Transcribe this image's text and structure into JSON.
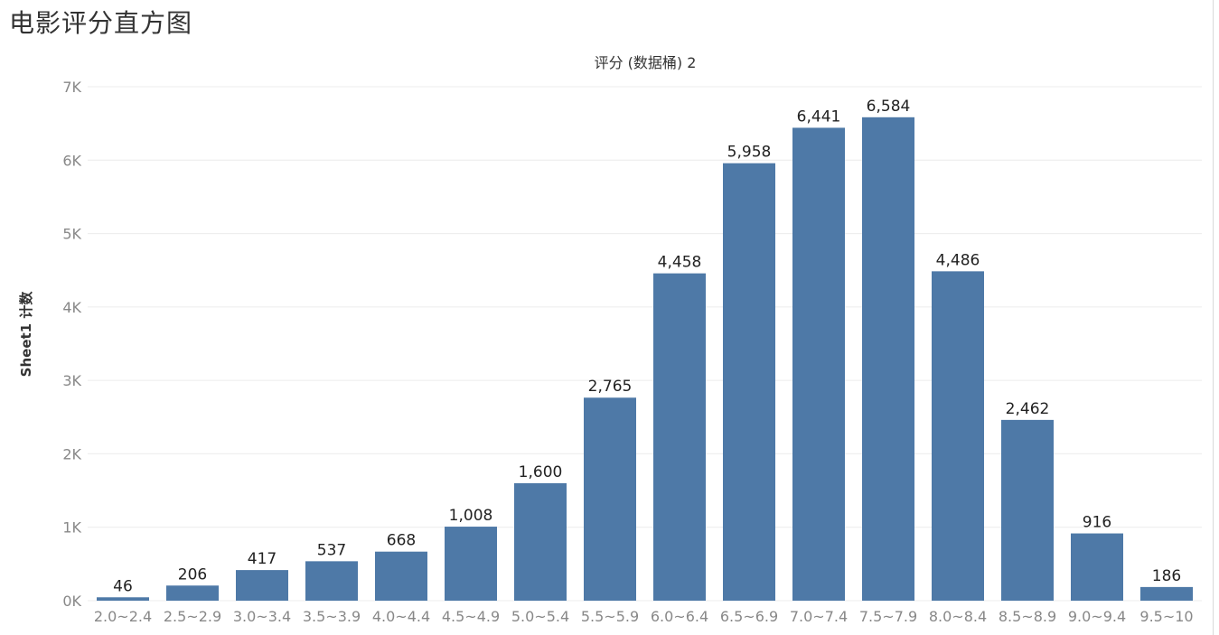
{
  "page": {
    "title": "电影评分直方图"
  },
  "chart_data": {
    "type": "bar",
    "title": "评分 (数据桶) 2",
    "xlabel": "",
    "ylabel": "Sheet1 计数",
    "categories": [
      "2.0~2.4",
      "2.5~2.9",
      "3.0~3.4",
      "3.5~3.9",
      "4.0~4.4",
      "4.5~4.9",
      "5.0~5.4",
      "5.5~5.9",
      "6.0~6.4",
      "6.5~6.9",
      "7.0~7.4",
      "7.5~7.9",
      "8.0~8.4",
      "8.5~8.9",
      "9.0~9.4",
      "9.5~10"
    ],
    "values": [
      46,
      206,
      417,
      537,
      668,
      1008,
      1600,
      2765,
      4458,
      5958,
      6441,
      6584,
      4486,
      2462,
      916,
      186
    ],
    "value_labels": [
      "46",
      "206",
      "417",
      "537",
      "668",
      "1,008",
      "1,600",
      "2,765",
      "4,458",
      "5,958",
      "6,441",
      "6,584",
      "4,486",
      "2,462",
      "916",
      "186"
    ],
    "yticks": [
      0,
      1000,
      2000,
      3000,
      4000,
      5000,
      6000,
      7000
    ],
    "ytick_labels": [
      "0K",
      "1K",
      "2K",
      "3K",
      "4K",
      "5K",
      "6K",
      "7K"
    ],
    "ylim": [
      0,
      7000
    ],
    "grid": true,
    "legend": "none",
    "bar_color": "#4E79A7"
  }
}
